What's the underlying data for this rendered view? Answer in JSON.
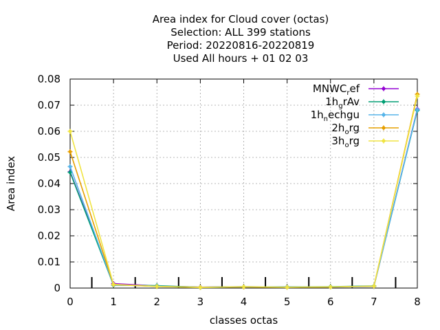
{
  "chart_data": {
    "type": "line",
    "title_lines": [
      "Area index  for Cloud cover (octas)",
      "Selection: ALL     399 stations",
      "Period: 20220816-20220819",
      "Used  All hours  + 01 02 03"
    ],
    "xlabel": "classes octas",
    "ylabel": "Area index",
    "xlim": [
      0,
      8
    ],
    "ylim": [
      0,
      0.08
    ],
    "x_ticks": [
      "0",
      "1",
      "2",
      "3",
      "4",
      "5",
      "6",
      "7",
      "8"
    ],
    "y_ticks": [
      "0",
      "0.01",
      "0.02",
      "0.03",
      "0.04",
      "0.05",
      "0.06",
      "0.07",
      "0.08"
    ],
    "grid": true,
    "legend_position": "top-right",
    "x": [
      0,
      1,
      2,
      3,
      4,
      5,
      6,
      7,
      8
    ],
    "series": [
      {
        "name": "MNWC_ref",
        "label_main": "MNWC",
        "label_sub": "r",
        "label_rest": "ef",
        "color": "#9400d3",
        "values": [
          0.0445,
          0.0017,
          0.0008,
          0.0003,
          0.0005,
          0.0004,
          0.0004,
          0.0006,
          0.0685
        ]
      },
      {
        "name": "1h_grAv",
        "label_main": "1h",
        "label_sub": "g",
        "label_rest": "rAv",
        "color": "#009e73",
        "values": [
          0.0443,
          0.0011,
          0.0009,
          0.0003,
          0.0005,
          0.0004,
          0.0005,
          0.0008,
          0.068
        ]
      },
      {
        "name": "1h_nechgu",
        "label_main": "1h",
        "label_sub": "n",
        "label_rest": "echgu",
        "color": "#56b4e9",
        "values": [
          0.0465,
          0.0012,
          0.0007,
          0.0002,
          0.0004,
          0.0003,
          0.0004,
          0.0006,
          0.0683
        ]
      },
      {
        "name": "2h_org",
        "label_main": "2h",
        "label_sub": "o",
        "label_rest": "rg",
        "color": "#e69f00",
        "values": [
          0.0522,
          0.0013,
          0.0006,
          0.0003,
          0.0004,
          0.0003,
          0.0004,
          0.0007,
          0.0742
        ]
      },
      {
        "name": "3h_org",
        "label_main": "3h",
        "label_sub": "o",
        "label_rest": "rg",
        "color": "#f0e442",
        "values": [
          0.06,
          0.0014,
          0.0006,
          0.0002,
          0.0005,
          0.0003,
          0.0004,
          0.0007,
          0.0735
        ]
      }
    ],
    "marker_bars_x": [
      0.5,
      1.5,
      2.5,
      3.5,
      4.5,
      5.5,
      6.5,
      7.5
    ]
  }
}
